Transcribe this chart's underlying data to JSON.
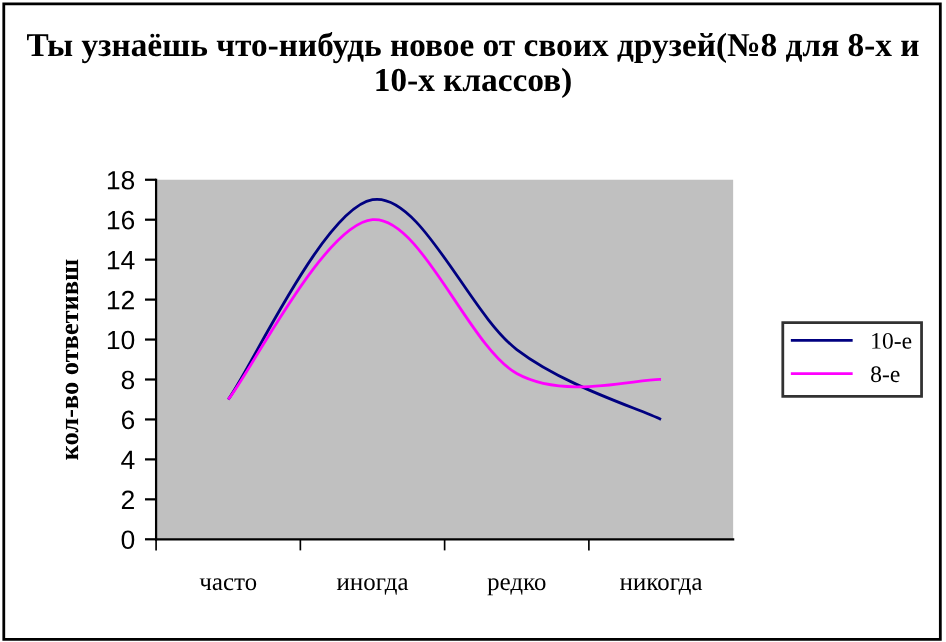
{
  "chart_data": {
    "type": "line",
    "title": "Ты узнаёшь что-нибудь новое от своих друзей(№8 для 8-х и 10-х классов)",
    "ylabel": "кол-во ответивш",
    "categories": [
      "часто",
      "иногда",
      "редко",
      "никогда"
    ],
    "series": [
      {
        "name": "10-е",
        "color": "#000080",
        "values": [
          7,
          17,
          9.5,
          6
        ]
      },
      {
        "name": "8-е",
        "color": "#ff00ff",
        "values": [
          7,
          16,
          8.3,
          8
        ]
      }
    ],
    "ylim": [
      0,
      18
    ],
    "yticks": [
      0,
      2,
      4,
      6,
      8,
      10,
      12,
      14,
      16,
      18
    ],
    "grid": false,
    "legend": "right",
    "marker": "none",
    "line_style": "solid"
  }
}
